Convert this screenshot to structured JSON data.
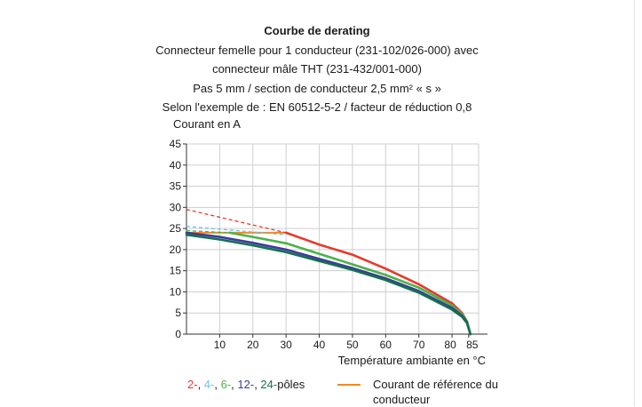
{
  "header": {
    "title": "Courbe de derating",
    "lines": [
      "Connecteur femelle pour 1 conducteur (231-102/026-000) avec",
      "connecteur mâle THT (231-432/001-000)",
      "Pas 5 mm / section de conducteur 2,5 mm² « s »",
      "Selon l'exemple de : EN 60512-5-2 / facteur de réduction 0,8"
    ],
    "unit_label": "Courant en A"
  },
  "legend": {
    "poles_parts": [
      "2-",
      ", ",
      "4-",
      ", ",
      "6-",
      ", ",
      "12-",
      ", ",
      "24-",
      "pôles"
    ],
    "ref_label": "Courant de référence du conducteur"
  },
  "chart_data": {
    "type": "line",
    "title": "Courbe de derating",
    "xlabel": "Température ambiante en °C",
    "ylabel": "Courant en A",
    "xlim": [
      0,
      88
    ],
    "ylim": [
      0,
      45
    ],
    "x_ticks": [
      10,
      20,
      30,
      40,
      50,
      60,
      70,
      80,
      85
    ],
    "y_ticks": [
      0,
      5,
      10,
      15,
      20,
      25,
      30,
      35,
      40,
      45
    ],
    "grid": true,
    "colors": {
      "2": "#e53a2b",
      "4": "#6ec1e4",
      "6": "#4cb24a",
      "12": "#3a3ba0",
      "24": "#17704a",
      "ref": "#f08a24"
    },
    "series": [
      {
        "key": "ref",
        "name": "Courant de référence du conducteur",
        "x": [
          0,
          30
        ],
        "y": [
          24,
          24
        ]
      },
      {
        "key": "2",
        "name": "2-",
        "x": [
          0,
          30,
          40,
          50,
          60,
          70,
          80,
          83,
          84.5,
          85,
          85.5
        ],
        "y": [
          29.5,
          24,
          21.2,
          18.8,
          15.5,
          11.8,
          7.3,
          5,
          3,
          1.5,
          0
        ],
        "dashed_until": 30
      },
      {
        "key": "4",
        "name": "4-",
        "x": [
          0,
          30
        ],
        "y": [
          25.5,
          23.5
        ],
        "dashed_until": 30
      },
      {
        "key": "6",
        "name": "6-",
        "x": [
          0,
          13,
          20,
          30,
          40,
          50,
          60,
          70,
          80,
          83,
          84.5,
          85,
          85.5
        ],
        "y": [
          24.5,
          24,
          23,
          21.5,
          19,
          16.5,
          14,
          11,
          6.8,
          4.8,
          3,
          1.5,
          0
        ],
        "dashed_until": 13
      },
      {
        "key": "12",
        "name": "12-",
        "x": [
          0,
          10,
          20,
          30,
          40,
          50,
          60,
          70,
          80,
          83,
          84.5,
          85,
          85.5
        ],
        "y": [
          24,
          23,
          21.6,
          20,
          17.8,
          15.6,
          13.2,
          10.2,
          6.2,
          4.4,
          2.8,
          1.4,
          0
        ]
      },
      {
        "key": "24",
        "name": "24-",
        "x": [
          0,
          10,
          20,
          30,
          40,
          50,
          60,
          70,
          80,
          83,
          84.5,
          85,
          85.5
        ],
        "y": [
          23.5,
          22.4,
          21,
          19.4,
          17.3,
          15.2,
          12.8,
          9.8,
          5.8,
          4.1,
          2.6,
          1.3,
          0
        ]
      }
    ]
  }
}
